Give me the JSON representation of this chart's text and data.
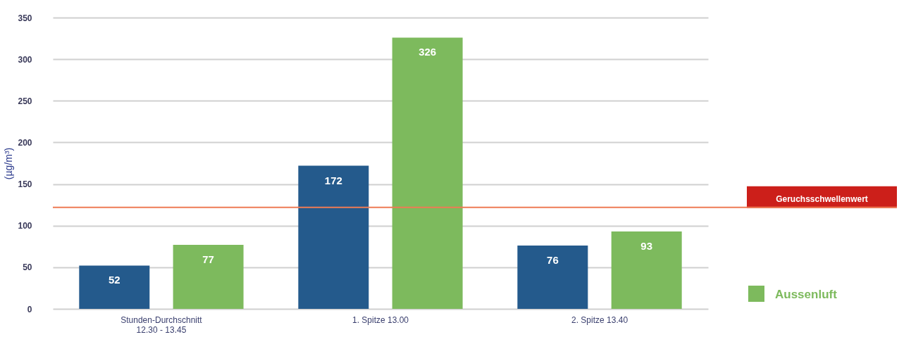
{
  "chart_data": {
    "type": "bar",
    "ylabel": "(µg/m³)",
    "categories": [
      "Stunden-Durchschnitt\n12.30 - 13.45",
      "1. Spitze 13.00",
      "2. Spitze 13.40"
    ],
    "series": [
      {
        "color": "#245a8c",
        "values": [
          52,
          172,
          76
        ]
      },
      {
        "name": "Aussenluft",
        "color": "#7dba5d",
        "values": [
          77,
          326,
          93
        ]
      }
    ],
    "ylim": [
      0,
      350
    ],
    "yticks": [
      0,
      50,
      100,
      150,
      200,
      250,
      300,
      350
    ],
    "grid": "y",
    "data_labels": true,
    "legend": "right",
    "ref_lines": [
      {
        "axis": "y",
        "value": 122,
        "label": "Geruchsschwellenwert",
        "color": "#ee7b55"
      }
    ]
  }
}
